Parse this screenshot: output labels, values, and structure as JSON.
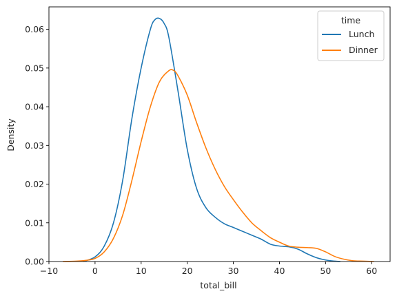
{
  "chart_data": {
    "type": "line",
    "title": "",
    "xlabel": "total_bill",
    "ylabel": "Density",
    "xlim": [
      -10,
      64
    ],
    "ylim": [
      0,
      0.0658
    ],
    "x_ticks": [
      -10,
      0,
      10,
      20,
      30,
      40,
      50,
      60
    ],
    "x_tick_labels": [
      "−10",
      "0",
      "10",
      "20",
      "30",
      "40",
      "50",
      "60"
    ],
    "y_ticks": [
      0,
      0.01,
      0.02,
      0.03,
      0.04,
      0.05,
      0.06
    ],
    "y_tick_labels": [
      "0.00",
      "0.01",
      "0.02",
      "0.03",
      "0.04",
      "0.05",
      "0.06"
    ],
    "grid": false,
    "legend": {
      "title": "time",
      "placement": "top-right",
      "entries": [
        "Lunch",
        "Dinner"
      ]
    },
    "series": [
      {
        "name": "Lunch",
        "color": "#1f77b4",
        "x": [
          -2.5,
          0,
          2,
          4,
          6,
          8,
          10,
          12,
          13,
          14,
          15,
          16,
          18,
          20,
          22,
          24,
          26,
          28,
          30,
          32,
          34,
          36,
          38,
          40,
          42,
          44,
          46,
          48,
          50,
          52,
          53.2
        ],
        "y": [
          0.0,
          0.0012,
          0.004,
          0.01,
          0.021,
          0.037,
          0.05,
          0.06,
          0.0625,
          0.0628,
          0.0615,
          0.058,
          0.044,
          0.029,
          0.019,
          0.014,
          0.0115,
          0.0098,
          0.0088,
          0.0078,
          0.0068,
          0.0058,
          0.0045,
          0.004,
          0.0038,
          0.0032,
          0.002,
          0.001,
          0.0004,
          0.0001,
          0.0
        ]
      },
      {
        "name": "Dinner",
        "color": "#ff7f0e",
        "x": [
          -7,
          -4,
          -2,
          0,
          2,
          4,
          6,
          8,
          10,
          12,
          14,
          16,
          17,
          18,
          20,
          22,
          24,
          26,
          28,
          30,
          32,
          34,
          36,
          38,
          40,
          42,
          44,
          46,
          48,
          50,
          52,
          54,
          56,
          58,
          60.5
        ],
        "y": [
          0.0,
          0.0001,
          0.0003,
          0.0008,
          0.0025,
          0.006,
          0.012,
          0.021,
          0.031,
          0.04,
          0.0465,
          0.0493,
          0.0494,
          0.048,
          0.043,
          0.036,
          0.0295,
          0.024,
          0.0195,
          0.016,
          0.0128,
          0.01,
          0.008,
          0.0062,
          0.005,
          0.004,
          0.0037,
          0.0036,
          0.0034,
          0.0025,
          0.0013,
          0.0006,
          0.0002,
          0.0001,
          0.0
        ]
      }
    ]
  }
}
